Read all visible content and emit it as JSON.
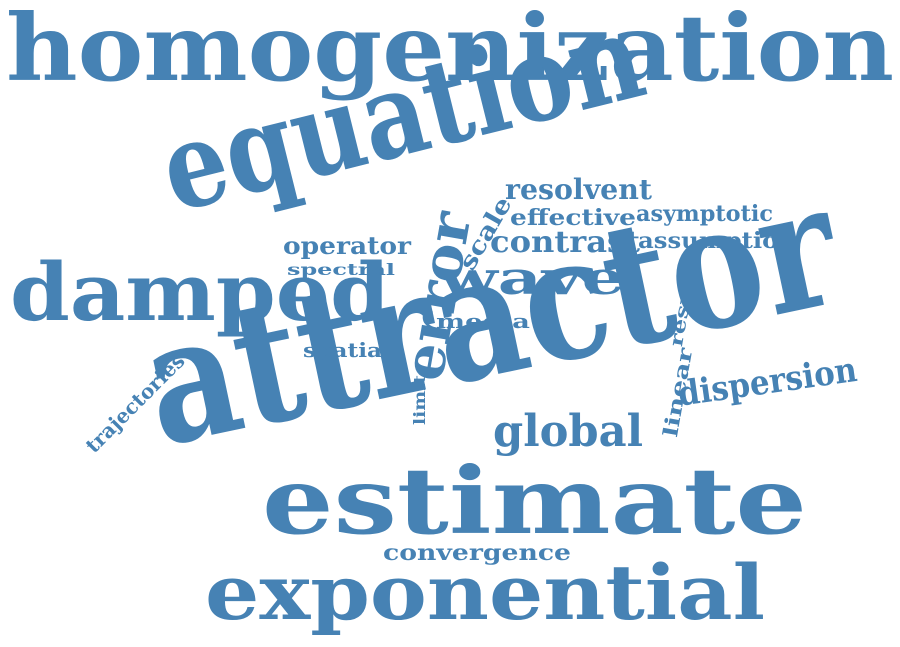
{
  "color": "#4682b4",
  "words": [
    "homogenization",
    "equation",
    "damped",
    "error",
    "resolvent",
    "effective",
    "asymptotic",
    "scale",
    "operator",
    "contrast",
    "assumption",
    "spectral",
    "wave",
    "media",
    "result",
    "attractor",
    "trajectories",
    "spatial",
    "linear",
    "dispersion",
    "limit",
    "global",
    "estimate",
    "convergence",
    "exponential"
  ]
}
